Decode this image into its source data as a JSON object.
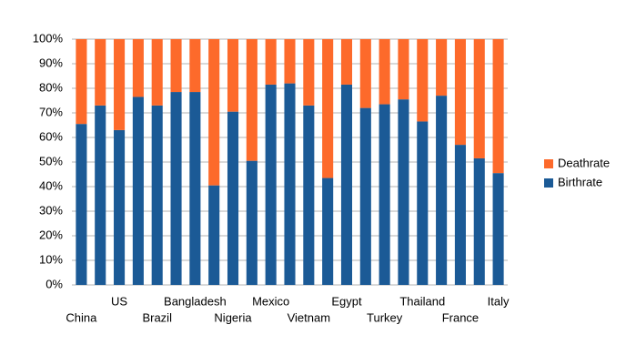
{
  "chart_data": {
    "type": "stacked_percent_bar",
    "categories": [
      "China",
      null,
      "US",
      null,
      "Brazil",
      null,
      "Bangladesh",
      null,
      "Nigeria",
      null,
      "Mexico",
      null,
      "Vietnam",
      null,
      "Egypt",
      null,
      "Turkey",
      null,
      "Thailand",
      null,
      "France",
      null,
      "Italy"
    ],
    "series": [
      {
        "name": "Birthrate",
        "color": "#1b5a96",
        "values": [
          65.5,
          73,
          63,
          76.5,
          73,
          78.5,
          78.5,
          40.5,
          70.5,
          50.5,
          81.5,
          82,
          73,
          43.5,
          81.5,
          72,
          73.5,
          75.5,
          66.5,
          77,
          57,
          51.5,
          45.5
        ]
      },
      {
        "name": "Deathrate",
        "color": "#fd6a2b",
        "values": [
          34.5,
          27,
          37,
          23.5,
          27,
          21.5,
          21.5,
          59.5,
          29.5,
          49.5,
          18.5,
          18,
          27,
          56.5,
          18.5,
          28,
          26.5,
          24.5,
          33.5,
          23,
          43,
          48.5,
          54.5
        ]
      }
    ],
    "ylim": [
      0,
      100
    ],
    "yticks": [
      {
        "value": 0,
        "label": "0%"
      },
      {
        "value": 10,
        "label": "10%"
      },
      {
        "value": 20,
        "label": "20%"
      },
      {
        "value": 30,
        "label": "30%"
      },
      {
        "value": 40,
        "label": "40%"
      },
      {
        "value": 50,
        "label": "50%"
      },
      {
        "value": 60,
        "label": "60%"
      },
      {
        "value": 70,
        "label": "70%"
      },
      {
        "value": 80,
        "label": "80%"
      },
      {
        "value": 90,
        "label": "90%"
      },
      {
        "value": 100,
        "label": "100%"
      }
    ],
    "grid": true,
    "legend": "right"
  }
}
